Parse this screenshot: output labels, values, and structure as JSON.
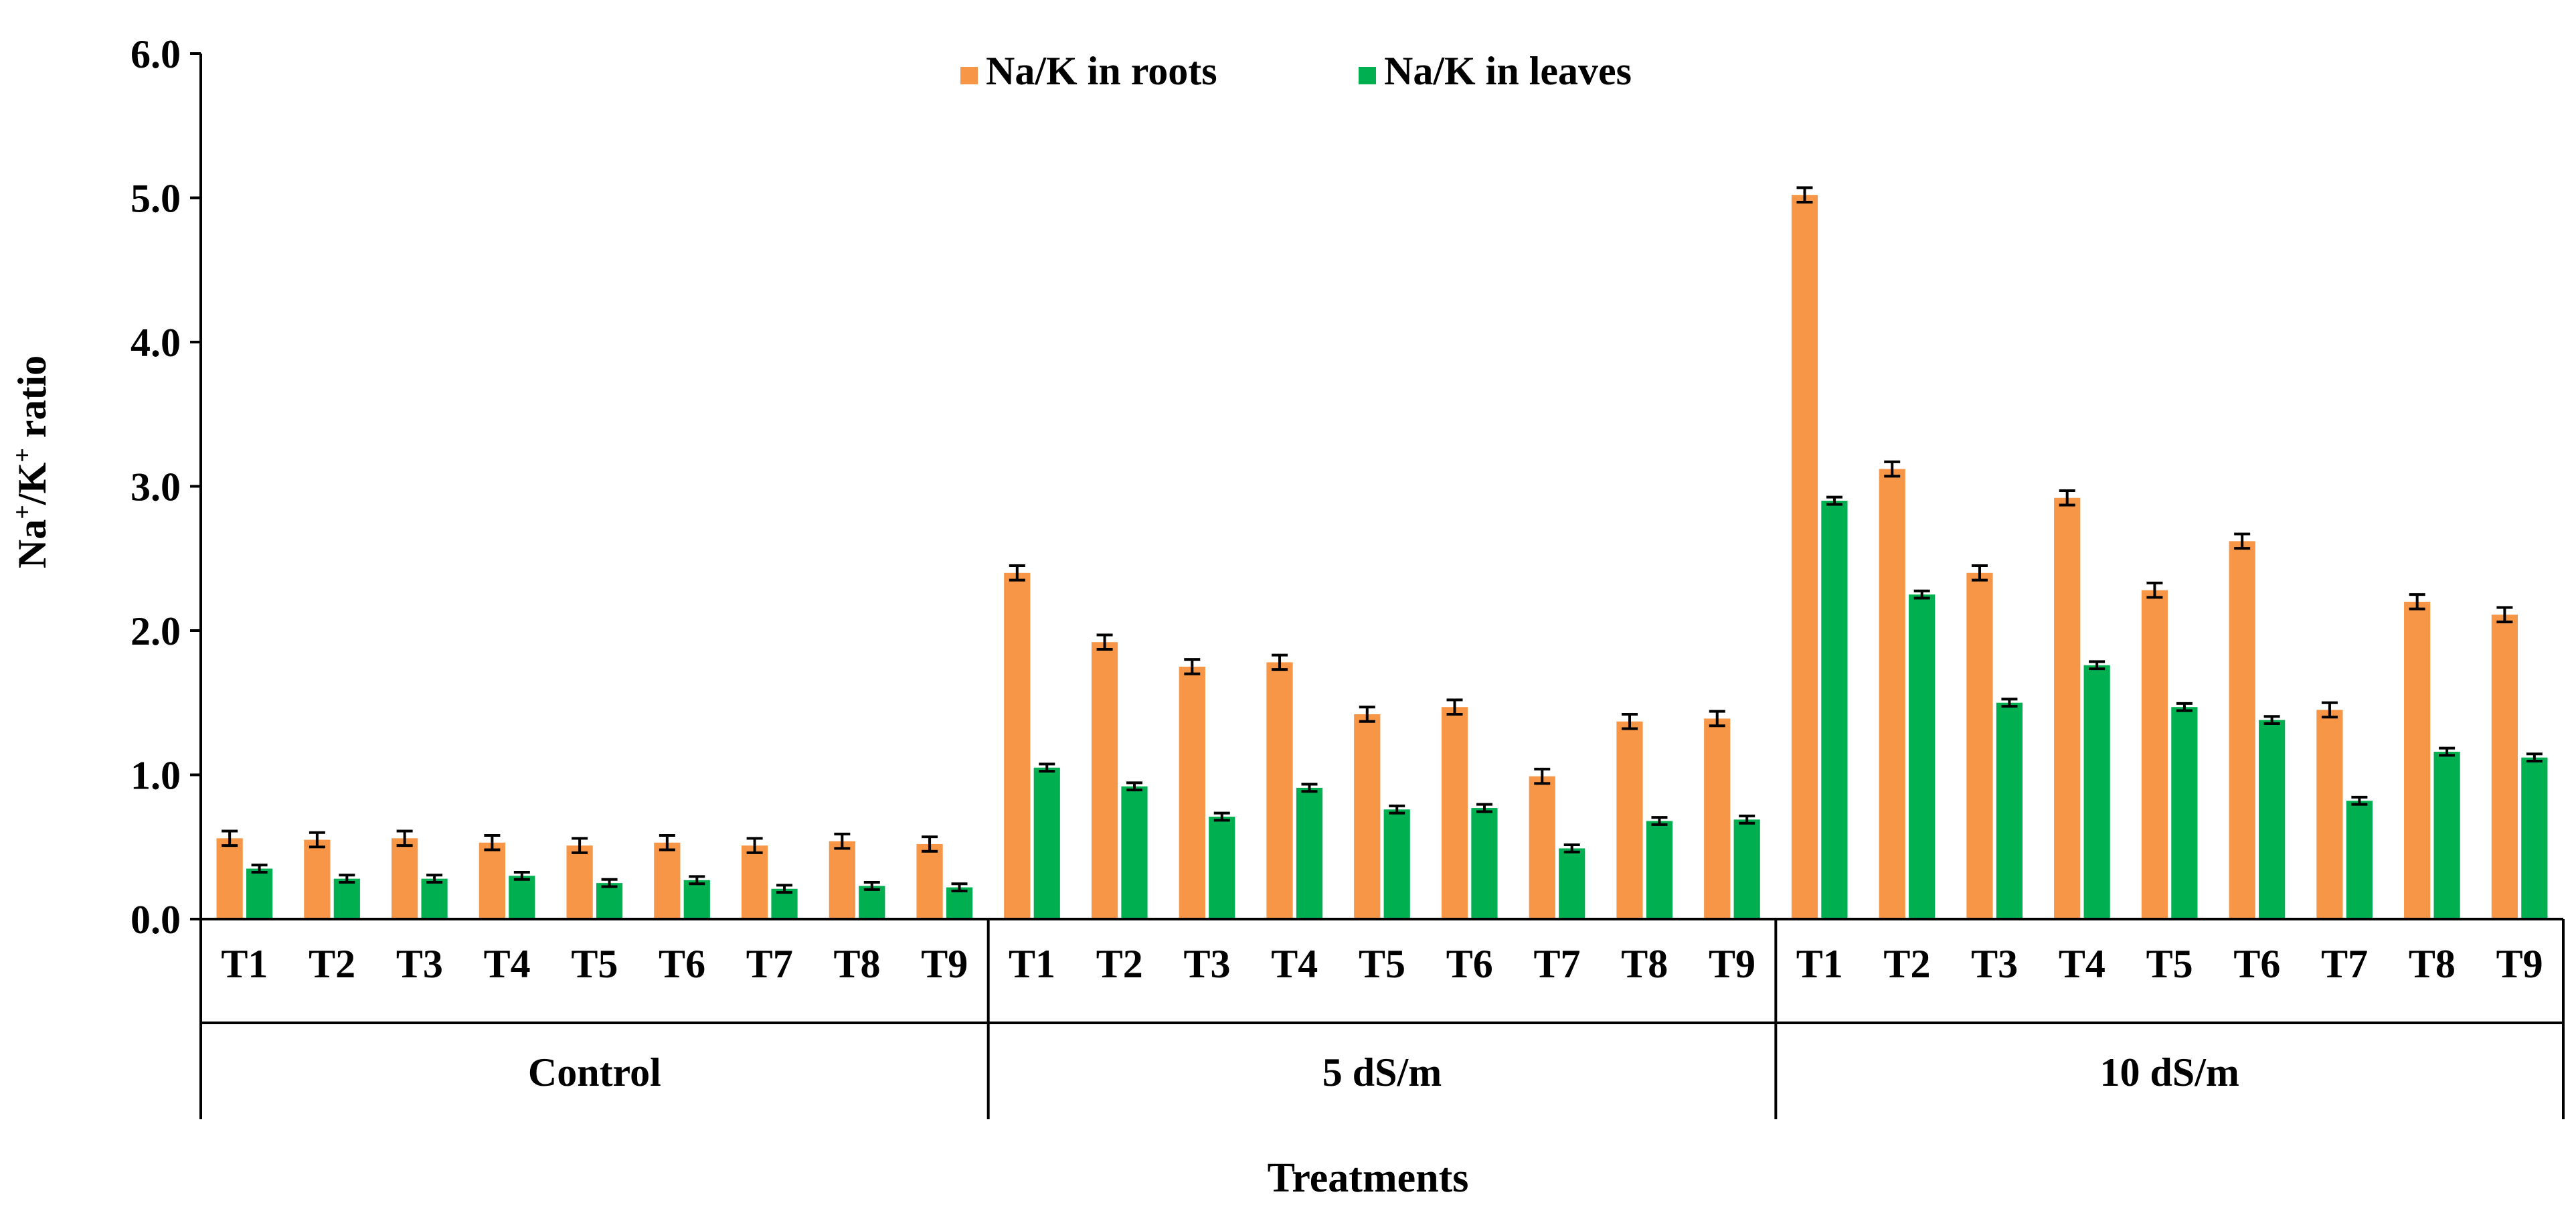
{
  "chart_data": {
    "type": "bar",
    "ylabel_parts": [
      "Na",
      "+",
      "/K",
      "+",
      " ratio"
    ],
    "xlabel": "Treatments",
    "ylim": [
      0,
      6
    ],
    "yticks": [
      "0.0",
      "1.0",
      "2.0",
      "3.0",
      "4.0",
      "5.0",
      "6.0"
    ],
    "legend_position": "top-center",
    "grid": false,
    "groups": [
      {
        "label": "Control",
        "categories": [
          "T1",
          "T2",
          "T3",
          "T4",
          "T5",
          "T6",
          "T7",
          "T8",
          "T9"
        ]
      },
      {
        "label": "5 dS/m",
        "categories": [
          "T1",
          "T2",
          "T3",
          "T4",
          "T5",
          "T6",
          "T7",
          "T8",
          "T9"
        ]
      },
      {
        "label": "10 dS/m",
        "categories": [
          "T1",
          "T2",
          "T3",
          "T4",
          "T5",
          "T6",
          "T7",
          "T8",
          "T9"
        ]
      }
    ],
    "series": [
      {
        "name": "Na/K in roots",
        "color": "#F79646",
        "values": [
          0.56,
          0.55,
          0.56,
          0.53,
          0.51,
          0.53,
          0.51,
          0.54,
          0.52,
          2.4,
          1.92,
          1.75,
          1.78,
          1.42,
          1.47,
          0.99,
          1.37,
          1.39,
          5.02,
          3.12,
          2.4,
          2.92,
          2.28,
          2.62,
          1.45,
          2.2,
          2.11
        ],
        "errors": [
          0.05,
          0.05,
          0.05,
          0.05,
          0.05,
          0.05,
          0.05,
          0.05,
          0.05,
          0.05,
          0.05,
          0.05,
          0.05,
          0.05,
          0.05,
          0.05,
          0.05,
          0.05,
          0.05,
          0.05,
          0.05,
          0.05,
          0.05,
          0.05,
          0.05,
          0.05,
          0.05
        ]
      },
      {
        "name": "Na/K in leaves",
        "color": "#00B050",
        "values": [
          0.35,
          0.28,
          0.28,
          0.3,
          0.25,
          0.27,
          0.21,
          0.23,
          0.22,
          1.05,
          0.92,
          0.71,
          0.91,
          0.76,
          0.77,
          0.49,
          0.68,
          0.69,
          2.9,
          2.25,
          1.5,
          1.76,
          1.47,
          1.38,
          0.82,
          1.16,
          1.12
        ],
        "errors": [
          0.025,
          0.025,
          0.025,
          0.025,
          0.025,
          0.025,
          0.025,
          0.025,
          0.025,
          0.025,
          0.025,
          0.025,
          0.025,
          0.025,
          0.025,
          0.025,
          0.025,
          0.025,
          0.025,
          0.025,
          0.025,
          0.025,
          0.025,
          0.025,
          0.025,
          0.025,
          0.025
        ]
      }
    ]
  }
}
